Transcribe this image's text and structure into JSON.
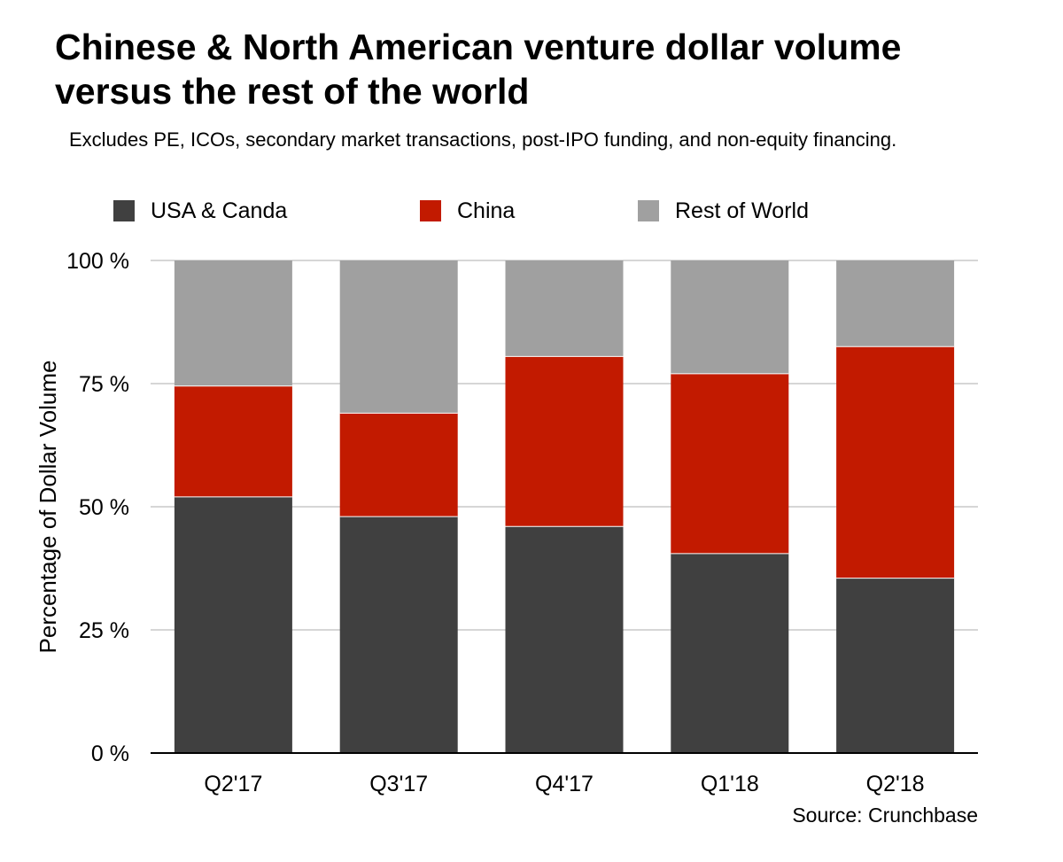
{
  "colors": {
    "usa_canada": "#404040",
    "china": "#c21a00",
    "rest_of_world": "#a0a0a0",
    "gridline": "#c8c8c8",
    "axis": "#000000"
  },
  "chart_data": {
    "type": "bar",
    "stacked": true,
    "title": "Chinese & North American venture dollar volume versus the rest of the world",
    "subtitle": "Excludes PE, ICOs, secondary market transactions, post-IPO funding, and non-equity financing.",
    "xlabel": "",
    "ylabel": "Percentage of Dollar Volume",
    "ylim": [
      0,
      100
    ],
    "yticks": [
      0,
      25,
      50,
      75,
      100
    ],
    "ytick_labels": [
      "0 %",
      "25 %",
      "50 %",
      "75 %",
      "100 %"
    ],
    "categories": [
      "Q2'17",
      "Q3'17",
      "Q4'17",
      "Q1'18",
      "Q2'18"
    ],
    "series": [
      {
        "name": "USA & Canda",
        "color_key": "usa_canada",
        "values": [
          52,
          48,
          46,
          40.5,
          35.5
        ]
      },
      {
        "name": "China",
        "color_key": "china",
        "values": [
          22.5,
          21,
          34.5,
          36.5,
          47
        ]
      },
      {
        "name": "Rest of World",
        "color_key": "rest_of_world",
        "values": [
          25.5,
          31,
          19.5,
          23,
          17.5
        ]
      }
    ],
    "legend_position": "top",
    "grid": true,
    "source": "Source: Crunchbase"
  }
}
